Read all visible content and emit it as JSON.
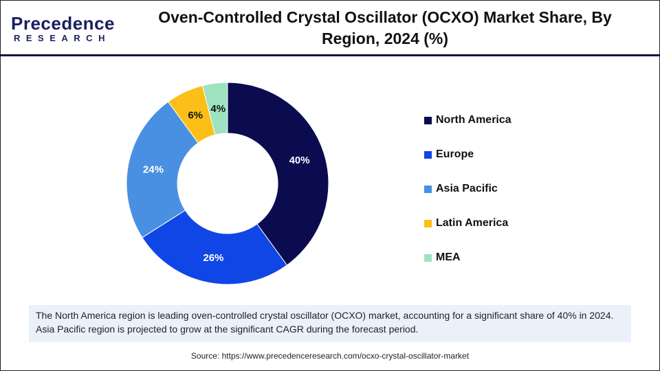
{
  "logo": {
    "line1": "Precedence",
    "line2": "RESEARCH"
  },
  "chart_data": {
    "type": "pie",
    "subtype": "donut",
    "title": "Oven-Controlled Crystal Oscillator (OCXO) Market Share, By Region, 2024 (%)",
    "categories": [
      "North America",
      "Europe",
      "Asia Pacific",
      "Latin America",
      "MEA"
    ],
    "values": [
      40,
      26,
      24,
      6,
      4
    ],
    "labels": [
      "40%",
      "26%",
      "24%",
      "6%",
      "4%"
    ],
    "colors": [
      "#0b0b4f",
      "#1146e6",
      "#4a90e2",
      "#fbbf17",
      "#9de3c0"
    ],
    "legend_position": "right"
  },
  "note": "The North America region is leading oven-controlled crystal oscillator (OCXO) market, accounting for a significant share of 40% in 2024. Asia Pacific region is projected to grow at the significant CAGR during the forecast period.",
  "source": "Source: https://www.precedenceresearch.com/ocxo-crystal-oscillator-market"
}
